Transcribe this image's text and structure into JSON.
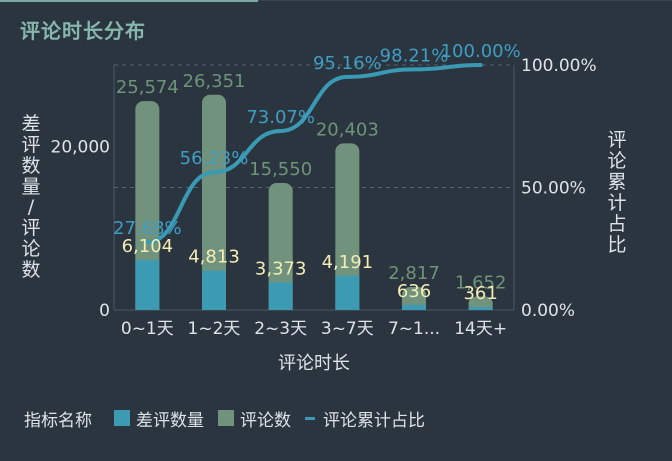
{
  "title": "评论时长分布",
  "colors": {
    "bad_reviews": "#3d9ab3",
    "reviews": "#71937d",
    "cumulative": "#3a9ab4",
    "axis_text": "#dde3e7",
    "bad_label": "#f3edb4",
    "review_label": "#6e9479",
    "line_label": "#3f9ec2",
    "title": "#86b7ac"
  },
  "legend": {
    "title": "指标名称",
    "items": [
      "差评数量",
      "评论数",
      "评论累计占比"
    ]
  },
  "chart_data": {
    "type": "bar",
    "title": "评论时长分布",
    "xlabel": "评论时长",
    "ylabel_left": "差评数量/评论数",
    "ylabel_right": "评论累计占比",
    "categories": [
      "0~1天",
      "1~2天",
      "2~3天",
      "3~7天",
      "7~1...",
      "14天+"
    ],
    "series": [
      {
        "name": "差评数量",
        "type": "bar",
        "values": [
          6104,
          4813,
          3373,
          4191,
          636,
          361
        ],
        "labels": [
          "6,104",
          "4,813",
          "3,373",
          "4,191",
          "636",
          "361"
        ]
      },
      {
        "name": "评论数",
        "type": "bar",
        "values": [
          25574,
          26351,
          15550,
          20403,
          2817,
          1652
        ],
        "labels": [
          "25,574",
          "26,351",
          "15,550",
          "20,403",
          "2,817",
          "1,652"
        ]
      },
      {
        "name": "评论累计占比",
        "type": "line",
        "axis": "right",
        "values": [
          27.68,
          56.23,
          73.07,
          95.16,
          98.21,
          100.0
        ],
        "labels": [
          "27.68%",
          "56.23%",
          "73.07%",
          "95.16%",
          "98.21%",
          "100.00%"
        ]
      }
    ],
    "y_left_ticks": [
      {
        "value": 0,
        "label": "0"
      },
      {
        "value": 20000,
        "label": "20,000"
      }
    ],
    "y_right_ticks": [
      {
        "value": 0,
        "label": "0.00%"
      },
      {
        "value": 50,
        "label": "50.00%"
      },
      {
        "value": 100,
        "label": "100.00%"
      }
    ],
    "ylim_left": [
      0,
      30000
    ],
    "ylim_right": [
      0,
      100
    ],
    "grid": true,
    "legend_position": "bottom-left"
  }
}
